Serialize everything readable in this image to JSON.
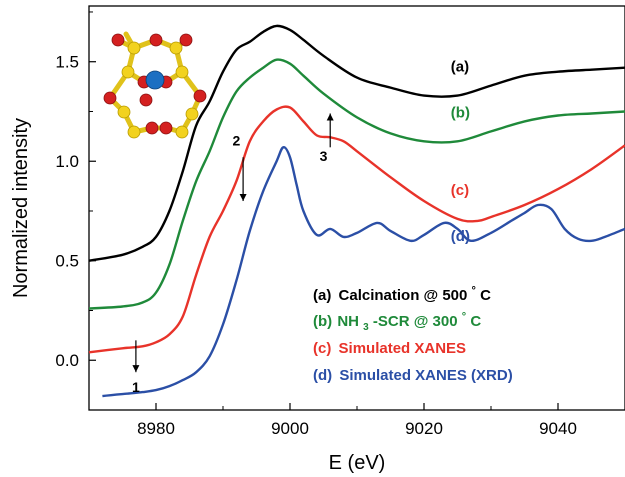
{
  "chart_data": {
    "type": "line",
    "title": "",
    "xlabel": "E (eV)",
    "ylabel": "Normalized intensity",
    "xlim": [
      8970,
      9050
    ],
    "ylim": [
      -0.25,
      1.78
    ],
    "x_ticks": [
      8980,
      9000,
      9020,
      9040
    ],
    "y_ticks": [
      0.0,
      0.5,
      1.0,
      1.5
    ],
    "x_tick_labels": [
      "8980",
      "9000",
      "9020",
      "9040"
    ],
    "y_tick_labels": [
      "0.0",
      "0.5",
      "1.0",
      "1.5"
    ],
    "grid": false,
    "series": [
      {
        "name": "Calcination @ 500°C",
        "label": "(a)",
        "legend_tag": "(a)",
        "legend_text": "Calcination @ 500",
        "legend_sup": "°",
        "legend_tail": "C",
        "color": "#000000",
        "x": [
          8970,
          8975,
          8978,
          8980,
          8982,
          8984,
          8986,
          8988,
          8990,
          8992,
          8994,
          8996,
          8998,
          9000,
          9002,
          9005,
          9010,
          9015,
          9020,
          9025,
          9030,
          9035,
          9040,
          9045,
          9050
        ],
        "y": [
          0.5,
          0.53,
          0.57,
          0.62,
          0.75,
          0.95,
          1.18,
          1.3,
          1.45,
          1.56,
          1.6,
          1.65,
          1.68,
          1.66,
          1.61,
          1.53,
          1.42,
          1.37,
          1.33,
          1.33,
          1.38,
          1.43,
          1.45,
          1.46,
          1.47
        ]
      },
      {
        "name": "NH3-SCR @ 300°C",
        "label": "(b)",
        "legend_tag": "(b)",
        "legend_text": "NH",
        "legend_sub": "3",
        "legend_text2": "-SCR @ 300",
        "legend_sup": "°",
        "legend_tail": "C",
        "color": "#1f8a3a",
        "x": [
          8970,
          8975,
          8978,
          8980,
          8982,
          8984,
          8986,
          8988,
          8990,
          8992,
          8994,
          8996,
          8998,
          9000,
          9002,
          9005,
          9010,
          9015,
          9020,
          9025,
          9030,
          9035,
          9040,
          9045,
          9050
        ],
        "y": [
          0.26,
          0.27,
          0.29,
          0.34,
          0.48,
          0.7,
          0.9,
          1.05,
          1.22,
          1.35,
          1.42,
          1.47,
          1.51,
          1.49,
          1.43,
          1.34,
          1.22,
          1.14,
          1.1,
          1.1,
          1.15,
          1.2,
          1.23,
          1.24,
          1.25
        ]
      },
      {
        "name": "Simulated XANES",
        "label": "(c)",
        "legend_tag": "(c)",
        "legend_text": "Simulated XANES",
        "color": "#e8332a",
        "x": [
          8970,
          8975,
          8978,
          8980,
          8982,
          8984,
          8986,
          8988,
          8990,
          8992,
          8994,
          8996,
          8998,
          9000,
          9002,
          9004,
          9006,
          9008,
          9010,
          9015,
          9020,
          9025,
          9028,
          9030,
          9035,
          9040,
          9045,
          9050
        ],
        "y": [
          0.04,
          0.06,
          0.07,
          0.09,
          0.13,
          0.22,
          0.43,
          0.62,
          0.75,
          0.9,
          1.1,
          1.2,
          1.26,
          1.27,
          1.2,
          1.13,
          1.12,
          1.1,
          1.05,
          0.92,
          0.8,
          0.71,
          0.7,
          0.72,
          0.78,
          0.86,
          0.96,
          1.08
        ]
      },
      {
        "name": "Simulated XANES (XRD)",
        "label": "(d)",
        "legend_tag": "(d)",
        "legend_text": "Simulated XANES (XRD)",
        "color": "#2b4fa6",
        "x": [
          8972,
          8975,
          8978,
          8980,
          8982,
          8984,
          8986,
          8988,
          8990,
          8992,
          8994,
          8996,
          8998,
          8999,
          9000,
          9001,
          9002,
          9004,
          9006,
          9008,
          9010,
          9013,
          9015,
          9018,
          9020,
          9023,
          9025,
          9027,
          9030,
          9033,
          9035,
          9037,
          9039,
          9041,
          9043,
          9045,
          9047,
          9050
        ],
        "y": [
          -0.18,
          -0.17,
          -0.16,
          -0.15,
          -0.13,
          -0.1,
          -0.06,
          0.02,
          0.18,
          0.4,
          0.65,
          0.85,
          1.0,
          1.07,
          1.02,
          0.88,
          0.75,
          0.63,
          0.66,
          0.62,
          0.64,
          0.69,
          0.65,
          0.6,
          0.63,
          0.69,
          0.66,
          0.6,
          0.64,
          0.7,
          0.74,
          0.78,
          0.76,
          0.66,
          0.61,
          0.6,
          0.62,
          0.66
        ]
      }
    ],
    "curve_labels": [
      {
        "text": "(a)",
        "x": 9024,
        "y": 1.45,
        "color": "#000000"
      },
      {
        "text": "(b)",
        "x": 9024,
        "y": 1.22,
        "color": "#1f8a3a"
      },
      {
        "text": "(c)",
        "x": 9024,
        "y": 0.83,
        "color": "#e8332a"
      },
      {
        "text": "(d)",
        "x": 9024,
        "y": 0.6,
        "color": "#2b4fa6"
      }
    ],
    "annotations": [
      {
        "text": "1",
        "x_text": 8977,
        "y_text": -0.16,
        "arrow_from": [
          8977,
          0.1
        ],
        "arrow_to": [
          8977,
          -0.06
        ],
        "direction": "down"
      },
      {
        "text": "2",
        "x_text": 8992,
        "y_text": 1.08,
        "arrow_from": [
          8993,
          1.02
        ],
        "arrow_to": [
          8993,
          0.8
        ],
        "direction": "down"
      },
      {
        "text": "3",
        "x_text": 9005,
        "y_text": 1.0,
        "arrow_from": [
          9006,
          1.07
        ],
        "arrow_to": [
          9006,
          1.24
        ],
        "direction": "up"
      }
    ],
    "legend_placement": "lower-right"
  }
}
